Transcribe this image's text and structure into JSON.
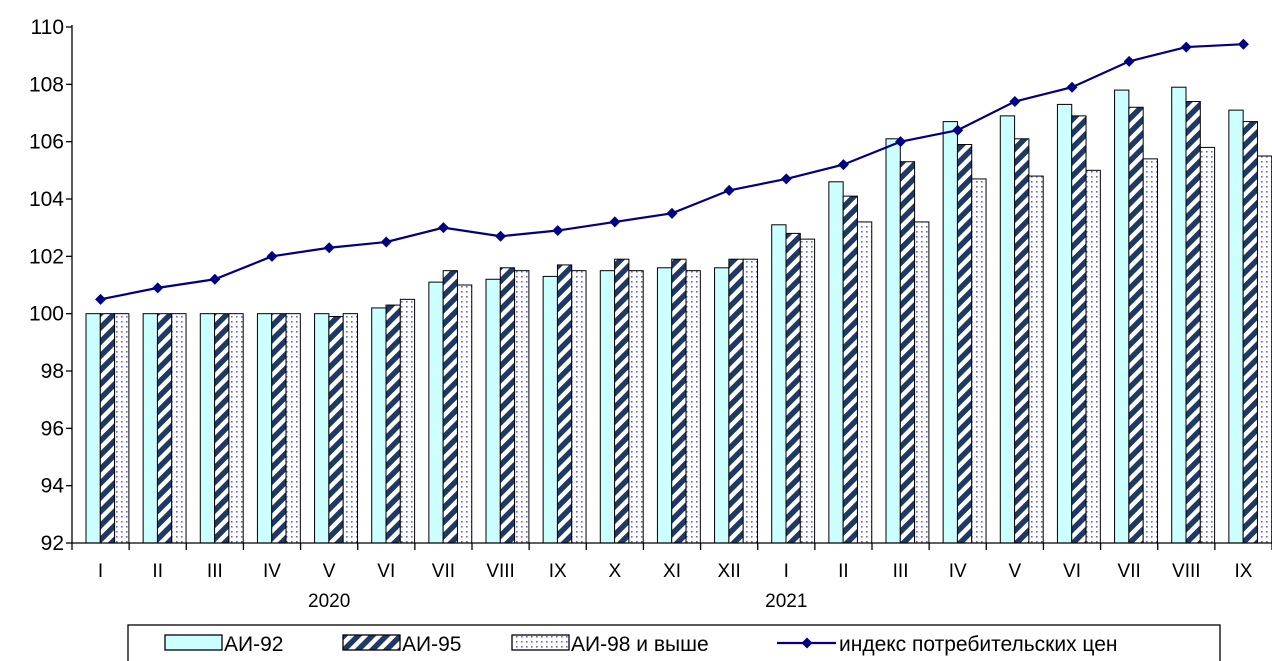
{
  "chart_data": {
    "type": "bar",
    "categories": [
      "I",
      "II",
      "III",
      "IV",
      "V",
      "VI",
      "VII",
      "VIII",
      "IX",
      "X",
      "XI",
      "XII",
      "I",
      "II",
      "III",
      "IV",
      "V",
      "VI",
      "VII",
      "VIII",
      "IX"
    ],
    "year_labels": [
      {
        "label": "2020",
        "category_index": 4
      },
      {
        "label": "2021",
        "category_index": 12
      }
    ],
    "ylim": [
      92,
      110
    ],
    "yticks": [
      92,
      94,
      96,
      98,
      100,
      102,
      104,
      106,
      108,
      110
    ],
    "series": [
      {
        "name": "АИ-92",
        "type": "bar",
        "pattern": "solid",
        "color": "#ccffff",
        "values": [
          100.0,
          100.0,
          100.0,
          100.0,
          100.0,
          100.2,
          101.1,
          101.2,
          101.3,
          101.5,
          101.6,
          101.6,
          103.1,
          104.6,
          106.1,
          106.7,
          106.9,
          107.3,
          107.8,
          107.9,
          107.1
        ]
      },
      {
        "name": "АИ-95",
        "type": "bar",
        "pattern": "diagonal-stripes",
        "color": "#1f3864",
        "values": [
          100.0,
          100.0,
          100.0,
          100.0,
          99.9,
          100.3,
          101.5,
          101.6,
          101.7,
          101.9,
          101.9,
          101.9,
          102.8,
          104.1,
          105.3,
          105.9,
          106.1,
          106.9,
          107.2,
          107.4,
          106.7
        ]
      },
      {
        "name": "АИ-98 и выше",
        "type": "bar",
        "pattern": "dots",
        "color": "#6666cc",
        "values": [
          100.0,
          100.0,
          100.0,
          100.0,
          100.0,
          100.5,
          101.0,
          101.5,
          101.5,
          101.5,
          101.5,
          101.9,
          102.6,
          103.2,
          103.2,
          104.7,
          104.8,
          105.0,
          105.4,
          105.8,
          105.5
        ]
      },
      {
        "name": "индекс потребительских цен",
        "type": "line",
        "marker": "diamond",
        "color": "#000080",
        "values": [
          100.5,
          100.9,
          101.2,
          102.0,
          102.3,
          102.5,
          103.0,
          102.7,
          102.9,
          103.2,
          103.5,
          104.3,
          104.7,
          105.2,
          106.0,
          106.4,
          107.4,
          107.9,
          108.8,
          109.3,
          109.4
        ]
      }
    ],
    "legend_position": "bottom",
    "grid": false
  }
}
